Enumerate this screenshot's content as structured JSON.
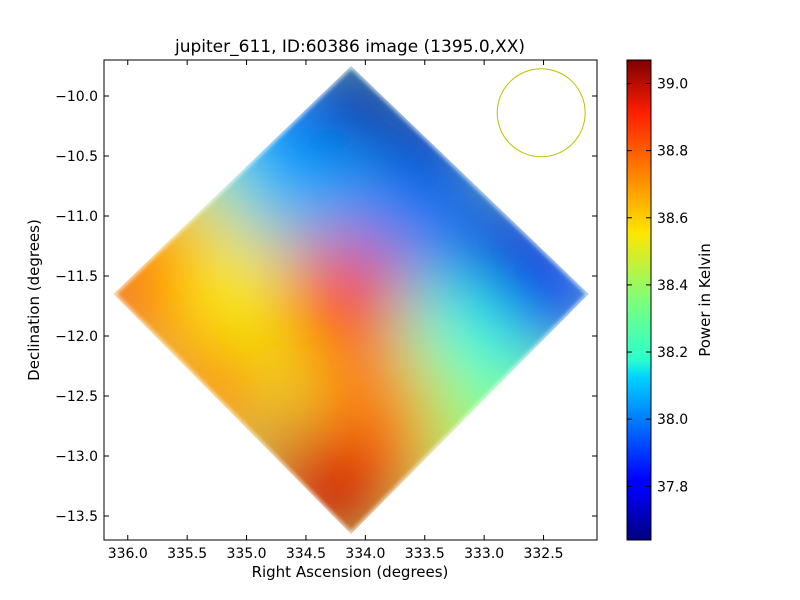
{
  "chart_data": {
    "type": "heatmap",
    "title": "jupiter_611, ID:60386 image (1395.0,XX)",
    "xlabel": "Right Ascension (degrees)",
    "ylabel": "Declination (degrees)",
    "xlim": [
      336.2,
      332.05
    ],
    "ylim": [
      -13.7,
      -9.7
    ],
    "x_ticks": [
      336.0,
      335.5,
      335.0,
      334.5,
      334.0,
      333.5,
      333.0,
      332.5
    ],
    "x_tick_labels": [
      "336.0",
      "335.5",
      "335.0",
      "334.5",
      "334.0",
      "333.5",
      "333.0",
      "332.5"
    ],
    "y_ticks": [
      -10.0,
      -10.5,
      -11.0,
      -11.5,
      -12.0,
      -12.5,
      -13.0,
      -13.5
    ],
    "y_tick_labels": [
      "−10.0",
      "−10.5",
      "−11.0",
      "−11.5",
      "−12.0",
      "−12.5",
      "−13.0",
      "−13.5"
    ],
    "colorbar": {
      "label": "Power in Kelvin",
      "range": [
        37.64,
        39.07
      ],
      "ticks": [
        37.8,
        38.0,
        38.2,
        38.4,
        38.6,
        38.8,
        39.0
      ],
      "tick_labels": [
        "37.8",
        "38.0",
        "38.2",
        "38.4",
        "38.6",
        "38.8",
        "39.0"
      ],
      "colormap": "jet"
    },
    "footprint": {
      "shape": "diamond",
      "vertices": [
        {
          "x": 334.12,
          "y": -9.75
        },
        {
          "x": 332.12,
          "y": -11.65
        },
        {
          "x": 334.12,
          "y": -13.65
        },
        {
          "x": 336.12,
          "y": -11.65
        }
      ]
    },
    "field": [
      {
        "x": 334.1,
        "y": -9.9,
        "value": 37.68
      },
      {
        "x": 333.4,
        "y": -10.4,
        "value": 37.72
      },
      {
        "x": 332.7,
        "y": -11.2,
        "value": 37.75
      },
      {
        "x": 332.3,
        "y": -11.7,
        "value": 37.8
      },
      {
        "x": 334.8,
        "y": -10.3,
        "value": 37.95
      },
      {
        "x": 335.2,
        "y": -10.7,
        "value": 38.1
      },
      {
        "x": 334.3,
        "y": -10.9,
        "value": 38.05
      },
      {
        "x": 333.6,
        "y": -11.1,
        "value": 38.0
      },
      {
        "x": 335.6,
        "y": -11.0,
        "value": 38.45
      },
      {
        "x": 333.2,
        "y": -12.1,
        "value": 38.2
      },
      {
        "x": 333.6,
        "y": -12.5,
        "value": 38.4
      },
      {
        "x": 335.8,
        "y": -11.3,
        "value": 38.7
      },
      {
        "x": 336.0,
        "y": -11.7,
        "value": 38.78
      },
      {
        "x": 335.2,
        "y": -11.6,
        "value": 38.58
      },
      {
        "x": 334.8,
        "y": -11.9,
        "value": 38.54
      },
      {
        "x": 334.9,
        "y": -12.2,
        "value": 38.5
      },
      {
        "x": 335.3,
        "y": -12.5,
        "value": 38.7
      },
      {
        "x": 334.0,
        "y": -12.6,
        "value": 38.72
      },
      {
        "x": 333.9,
        "y": -13.1,
        "value": 38.75
      },
      {
        "x": 334.2,
        "y": -13.5,
        "value": 39.0
      },
      {
        "x": 334.5,
        "y": -13.3,
        "value": 38.95
      },
      {
        "x": 334.2,
        "y": -11.7,
        "value": 38.85
      }
    ],
    "annotations": [
      {
        "type": "circle",
        "center": {
          "x": 332.52,
          "y": -10.14
        },
        "radius_deg": 0.37,
        "color": "#bfbf00",
        "meaning": "beam"
      }
    ],
    "grid": false
  }
}
